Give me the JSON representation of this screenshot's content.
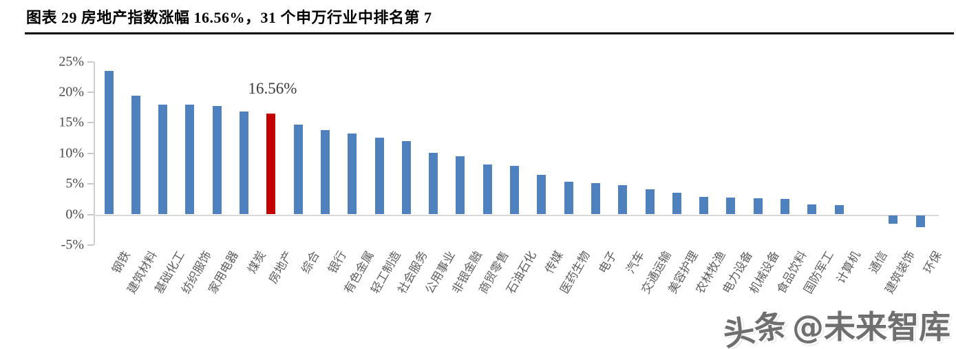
{
  "page": {
    "title": "图表 29 房地产指数涨幅 16.56%，31 个申万行业中排名第 7"
  },
  "watermark": {
    "brand": "头条",
    "handle": "@未来智库"
  },
  "colors": {
    "bar_blue": "#4e81bd",
    "bar_red": "#c30000",
    "axis_text": "#4a4a4a",
    "category_text": "#5f5f5f",
    "gridline": "#d9d9d9",
    "title_text": "#000000",
    "watermark_gray": "#6f6f6f"
  },
  "chart_data": {
    "type": "bar",
    "title": "图表 29 房地产指数涨幅 16.56%，31 个申万行业中排名第 7",
    "categories": [
      "钢铁",
      "建筑材料",
      "基础化工",
      "纺织服饰",
      "家用电器",
      "煤炭",
      "房地产",
      "综合",
      "银行",
      "有色金属",
      "轻工制造",
      "社会服务",
      "公用事业",
      "非银金融",
      "商贸零售",
      "石油石化",
      "传媒",
      "医药生物",
      "电子",
      "汽车",
      "交通运输",
      "美容护理",
      "农林牧渔",
      "电力设备",
      "机械设备",
      "食品饮料",
      "国防军工",
      "计算机",
      "通信",
      "建筑装饰",
      "环保"
    ],
    "values": [
      23.5,
      19.5,
      18.0,
      18.0,
      17.8,
      16.8,
      16.56,
      14.7,
      13.8,
      13.3,
      12.6,
      12.0,
      10.1,
      9.5,
      8.2,
      7.9,
      6.5,
      5.4,
      5.1,
      4.8,
      4.1,
      3.6,
      2.9,
      2.8,
      2.6,
      2.5,
      1.6,
      1.5,
      0.0,
      -1.4,
      -2.0
    ],
    "unit": "%",
    "highlight": {
      "category": "房地产",
      "index": 6,
      "value_label": "16.56%",
      "color": "#c30000"
    },
    "y_ticks": [
      25,
      20,
      15,
      10,
      5,
      0,
      -5
    ],
    "y_tick_labels": [
      "25%",
      "20%",
      "15%",
      "10%",
      "5%",
      "0%",
      "-5%"
    ],
    "ylim": [
      -5,
      25
    ],
    "xlabel": "",
    "ylabel": "",
    "legend": "none",
    "grid": "zero-baseline-only"
  }
}
